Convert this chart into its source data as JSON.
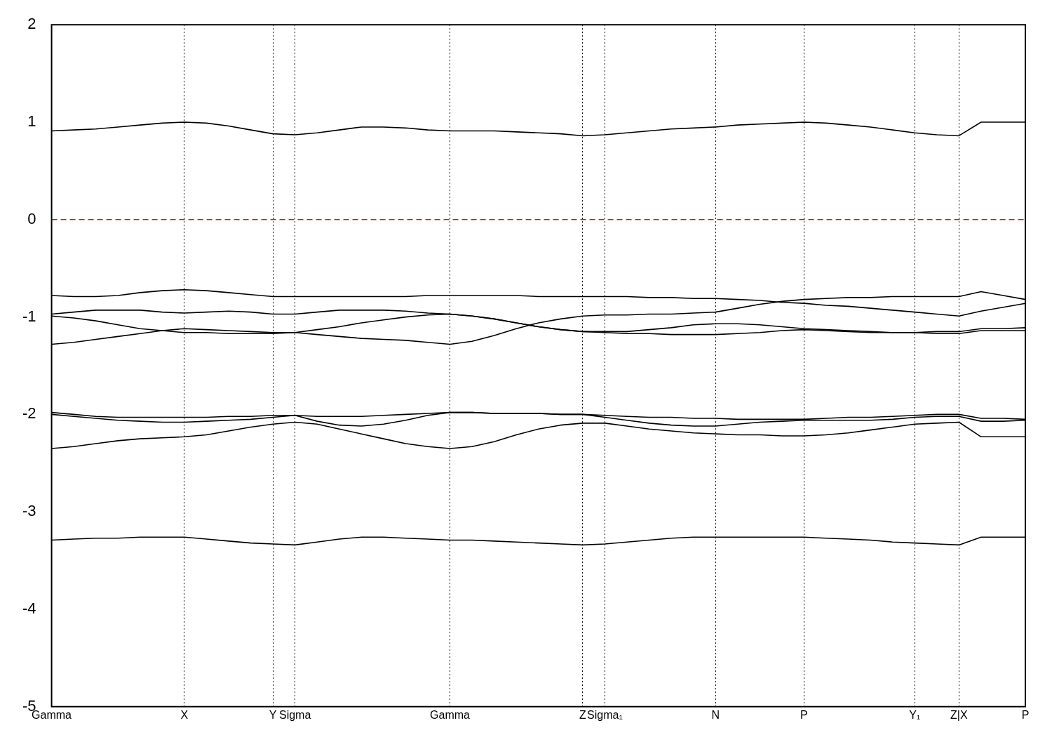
{
  "chart_data": {
    "type": "line",
    "categories": [
      "Gamma",
      null,
      null,
      null,
      null,
      null,
      "X",
      null,
      null,
      null,
      "Y",
      "Sigma",
      null,
      null,
      null,
      null,
      null,
      null,
      "Gamma",
      null,
      null,
      null,
      null,
      null,
      "Z",
      "Sigma₁",
      null,
      null,
      null,
      null,
      "N",
      null,
      null,
      null,
      "P",
      null,
      null,
      null,
      null,
      "Y₁",
      null,
      "Z|X",
      null,
      null,
      "P"
    ],
    "series": [
      {
        "color": "#000000",
        "values": [
          0.91,
          0.92,
          0.93,
          0.95,
          0.97,
          0.99,
          1.0,
          0.99,
          0.96,
          0.92,
          0.88,
          0.87,
          0.89,
          0.92,
          0.95,
          0.95,
          0.94,
          0.92,
          0.91,
          0.91,
          0.91,
          0.9,
          0.89,
          0.88,
          0.86,
          0.87,
          0.89,
          0.91,
          0.93,
          0.94,
          0.95,
          0.97,
          0.98,
          0.99,
          1.0,
          0.99,
          0.97,
          0.95,
          0.92,
          0.89,
          0.87,
          0.86,
          1.0,
          1.0,
          1.0
        ]
      },
      {
        "color": "#000000",
        "values": [
          -0.78,
          -0.79,
          -0.79,
          -0.78,
          -0.75,
          -0.73,
          -0.72,
          -0.73,
          -0.75,
          -0.77,
          -0.79,
          -0.79,
          -0.79,
          -0.79,
          -0.79,
          -0.79,
          -0.79,
          -0.78,
          -0.78,
          -0.78,
          -0.78,
          -0.78,
          -0.79,
          -0.79,
          -0.79,
          -0.79,
          -0.79,
          -0.8,
          -0.8,
          -0.81,
          -0.81,
          -0.82,
          -0.83,
          -0.85,
          -0.86,
          -0.88,
          -0.89,
          -0.91,
          -0.93,
          -0.95,
          -0.97,
          -0.99,
          -0.94,
          -0.9,
          -0.86
        ]
      },
      {
        "color": "#000000",
        "values": [
          -0.97,
          -0.95,
          -0.93,
          -0.93,
          -0.93,
          -0.95,
          -0.96,
          -0.95,
          -0.94,
          -0.95,
          -0.97,
          -0.97,
          -0.95,
          -0.93,
          -0.93,
          -0.93,
          -0.94,
          -0.96,
          -0.97,
          -0.99,
          -1.02,
          -1.06,
          -1.1,
          -1.13,
          -1.15,
          -1.15,
          -1.15,
          -1.13,
          -1.11,
          -1.08,
          -1.07,
          -1.07,
          -1.08,
          -1.1,
          -1.12,
          -1.13,
          -1.14,
          -1.15,
          -1.16,
          -1.16,
          -1.15,
          -1.15,
          -1.12,
          -1.12,
          -1.11
        ]
      },
      {
        "color": "#000000",
        "values": [
          -0.99,
          -1.01,
          -1.04,
          -1.08,
          -1.12,
          -1.14,
          -1.16,
          -1.16,
          -1.17,
          -1.17,
          -1.17,
          -1.16,
          -1.13,
          -1.1,
          -1.06,
          -1.03,
          -1.0,
          -0.98,
          -0.97,
          -0.99,
          -1.02,
          -1.06,
          -1.1,
          -1.13,
          -1.15,
          -1.16,
          -1.17,
          -1.17,
          -1.18,
          -1.18,
          -1.18,
          -1.17,
          -1.16,
          -1.14,
          -1.13,
          -1.14,
          -1.15,
          -1.16,
          -1.16,
          -1.16,
          -1.17,
          -1.17,
          -1.14,
          -1.14,
          -1.14
        ]
      },
      {
        "color": "#000000",
        "values": [
          -1.28,
          -1.26,
          -1.23,
          -1.2,
          -1.17,
          -1.14,
          -1.12,
          -1.13,
          -1.14,
          -1.15,
          -1.16,
          -1.16,
          -1.18,
          -1.2,
          -1.22,
          -1.23,
          -1.24,
          -1.26,
          -1.28,
          -1.25,
          -1.19,
          -1.12,
          -1.06,
          -1.02,
          -0.99,
          -0.98,
          -0.98,
          -0.97,
          -0.97,
          -0.96,
          -0.95,
          -0.91,
          -0.87,
          -0.84,
          -0.82,
          -0.81,
          -0.8,
          -0.8,
          -0.79,
          -0.79,
          -0.79,
          -0.79,
          -0.74,
          -0.78,
          -0.82
        ]
      },
      {
        "color": "#000000",
        "values": [
          -1.98,
          -2.0,
          -2.02,
          -2.03,
          -2.03,
          -2.03,
          -2.03,
          -2.03,
          -2.02,
          -2.02,
          -2.01,
          -2.01,
          -2.02,
          -2.02,
          -2.02,
          -2.01,
          -2.0,
          -1.99,
          -1.98,
          -1.98,
          -1.99,
          -1.99,
          -1.99,
          -2.0,
          -2.0,
          -2.01,
          -2.02,
          -2.03,
          -2.03,
          -2.04,
          -2.04,
          -2.05,
          -2.05,
          -2.05,
          -2.05,
          -2.04,
          -2.03,
          -2.03,
          -2.02,
          -2.01,
          -2.0,
          -2.0,
          -2.04,
          -2.04,
          -2.05
        ]
      },
      {
        "color": "#000000",
        "values": [
          -2.0,
          -2.02,
          -2.04,
          -2.06,
          -2.07,
          -2.08,
          -2.08,
          -2.07,
          -2.06,
          -2.05,
          -2.03,
          -2.01,
          -2.07,
          -2.11,
          -2.12,
          -2.1,
          -2.06,
          -2.01,
          -1.98,
          -1.98,
          -1.99,
          -1.99,
          -1.99,
          -2.0,
          -2.0,
          -2.03,
          -2.06,
          -2.09,
          -2.11,
          -2.12,
          -2.12,
          -2.1,
          -2.08,
          -2.07,
          -2.06,
          -2.06,
          -2.06,
          -2.06,
          -2.05,
          -2.03,
          -2.02,
          -2.02,
          -2.07,
          -2.07,
          -2.06
        ]
      },
      {
        "color": "#000000",
        "values": [
          -2.35,
          -2.33,
          -2.3,
          -2.27,
          -2.25,
          -2.24,
          -2.23,
          -2.21,
          -2.17,
          -2.13,
          -2.1,
          -2.08,
          -2.1,
          -2.15,
          -2.2,
          -2.25,
          -2.3,
          -2.33,
          -2.35,
          -2.33,
          -2.28,
          -2.21,
          -2.15,
          -2.11,
          -2.09,
          -2.09,
          -2.12,
          -2.15,
          -2.17,
          -2.19,
          -2.2,
          -2.21,
          -2.21,
          -2.22,
          -2.22,
          -2.21,
          -2.19,
          -2.16,
          -2.13,
          -2.1,
          -2.09,
          -2.08,
          -2.23,
          -2.23,
          -2.23
        ]
      },
      {
        "color": "#000000",
        "values": [
          -3.29,
          -3.28,
          -3.27,
          -3.27,
          -3.26,
          -3.26,
          -3.26,
          -3.28,
          -3.3,
          -3.32,
          -3.33,
          -3.34,
          -3.31,
          -3.28,
          -3.26,
          -3.26,
          -3.27,
          -3.28,
          -3.29,
          -3.29,
          -3.3,
          -3.31,
          -3.32,
          -3.33,
          -3.34,
          -3.33,
          -3.31,
          -3.29,
          -3.27,
          -3.26,
          -3.26,
          -3.26,
          -3.26,
          -3.26,
          -3.26,
          -3.27,
          -3.28,
          -3.29,
          -3.31,
          -3.32,
          -3.33,
          -3.34,
          -3.26,
          -3.26,
          -3.26
        ]
      }
    ],
    "ylim": [
      -5,
      2
    ],
    "yticks": [
      -5,
      -4,
      -3,
      -2,
      -1,
      0,
      1,
      2
    ],
    "grid": "x",
    "legend": false,
    "ref_lines": [
      {
        "axis": "y",
        "value": 0,
        "color": "#ff0000",
        "line_style": "dashed"
      }
    ]
  }
}
